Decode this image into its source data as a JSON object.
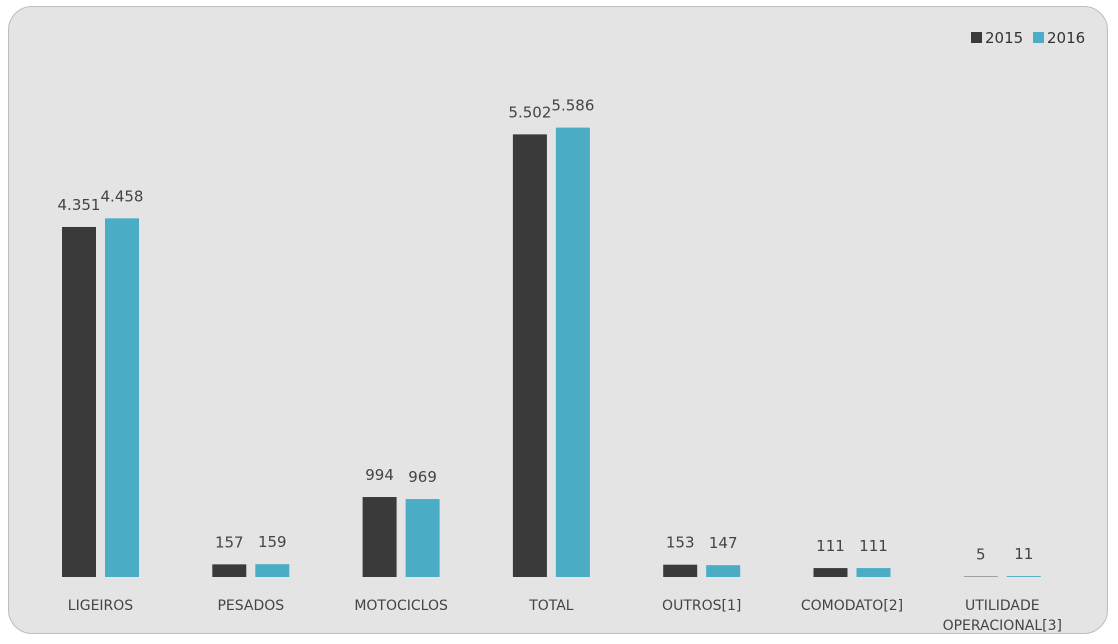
{
  "chart_data": {
    "type": "bar",
    "categories": [
      [
        "LIGEIROS"
      ],
      [
        "PESADOS"
      ],
      [
        "MOTOCICLOS"
      ],
      [
        "TOTAL"
      ],
      [
        "OUTROS[1]"
      ],
      [
        "COMODATO[2]"
      ],
      [
        "UTILIDADE",
        "OPERACIONAL[3]"
      ]
    ],
    "series": [
      {
        "name": "2015",
        "color": "#3a3a3a",
        "values": [
          4351,
          157,
          994,
          5502,
          153,
          111,
          5
        ],
        "labels": [
          "4.351",
          "157",
          "994",
          "5.502",
          "153",
          "111",
          "5"
        ]
      },
      {
        "name": "2016",
        "color": "#4bacc6",
        "values": [
          4458,
          159,
          969,
          5586,
          147,
          111,
          11
        ],
        "labels": [
          "4.458",
          "159",
          "969",
          "5.586",
          "147",
          "111",
          "11"
        ]
      }
    ],
    "ylim": [
      0,
      6000
    ],
    "grid": false,
    "legend": "top-right"
  }
}
